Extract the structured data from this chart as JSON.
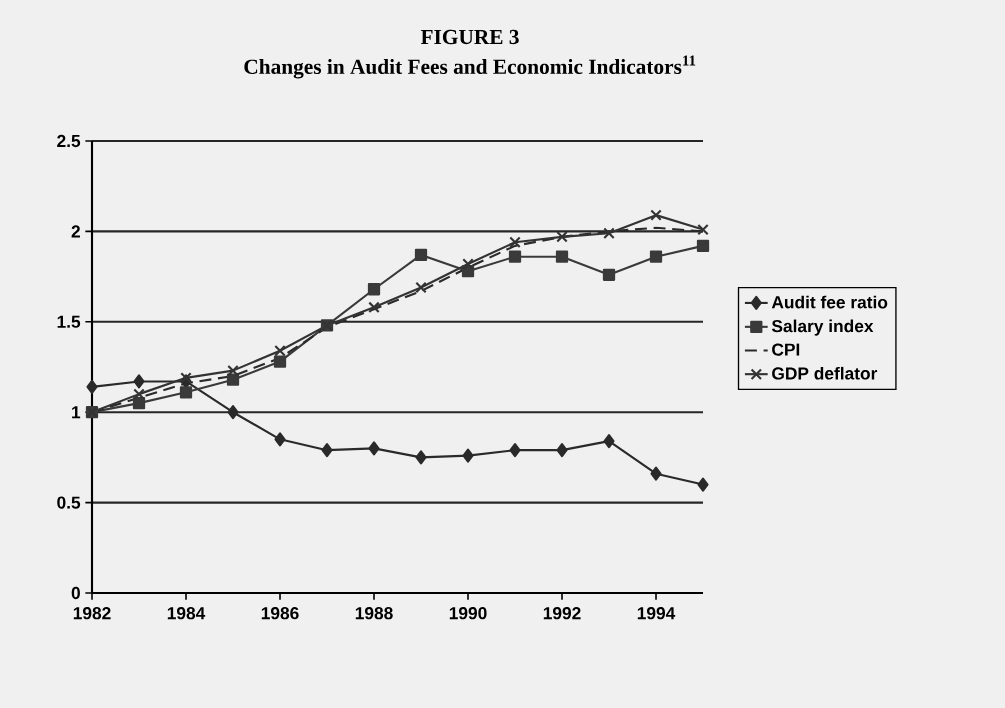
{
  "chart_data": {
    "type": "line",
    "title": "FIGURE 3",
    "subtitle": "Changes in Audit Fees and Economic Indicators$^{11}$",
    "x": [
      1982,
      1983,
      1984,
      1985,
      1986,
      1987,
      1988,
      1989,
      1990,
      1991,
      1992,
      1993,
      1994,
      1995
    ],
    "series": [
      {
        "name": "Audit fee ratio",
        "color": "#2a2a2a",
        "marker": "diamond",
        "line_style": "solid",
        "values": [
          1.14,
          1.17,
          1.17,
          1.0,
          0.85,
          0.79,
          0.8,
          0.75,
          0.76,
          0.79,
          0.79,
          0.84,
          0.66,
          0.6
        ]
      },
      {
        "name": "Salary index",
        "color": "#3a3a3a",
        "marker": "square",
        "line_style": "solid",
        "values": [
          1.0,
          1.05,
          1.11,
          1.18,
          1.28,
          1.48,
          1.68,
          1.87,
          1.78,
          1.86,
          1.86,
          1.76,
          1.86,
          1.92
        ]
      },
      {
        "name": "CPI",
        "color": "#2a2a2a",
        "marker": "none",
        "line_style": "dashed",
        "values": [
          1.0,
          1.08,
          1.16,
          1.2,
          1.3,
          1.47,
          1.57,
          1.67,
          1.8,
          1.92,
          1.97,
          2.0,
          2.02,
          2.0
        ]
      },
      {
        "name": "GDP deflator",
        "color": "#333333",
        "marker": "cross",
        "line_style": "solid",
        "values": [
          1.0,
          1.1,
          1.19,
          1.23,
          1.34,
          1.48,
          1.58,
          1.69,
          1.82,
          1.94,
          1.97,
          1.99,
          2.09,
          2.01
        ]
      }
    ],
    "xlim": [
      1982,
      1995
    ],
    "ylim": [
      0,
      2.5
    ],
    "xticks": [
      1982,
      1984,
      1986,
      1988,
      1990,
      1992,
      1994
    ],
    "yticks": [
      0,
      0.5,
      1,
      1.5,
      2,
      2.5
    ],
    "grid": "y",
    "legend": "right"
  }
}
